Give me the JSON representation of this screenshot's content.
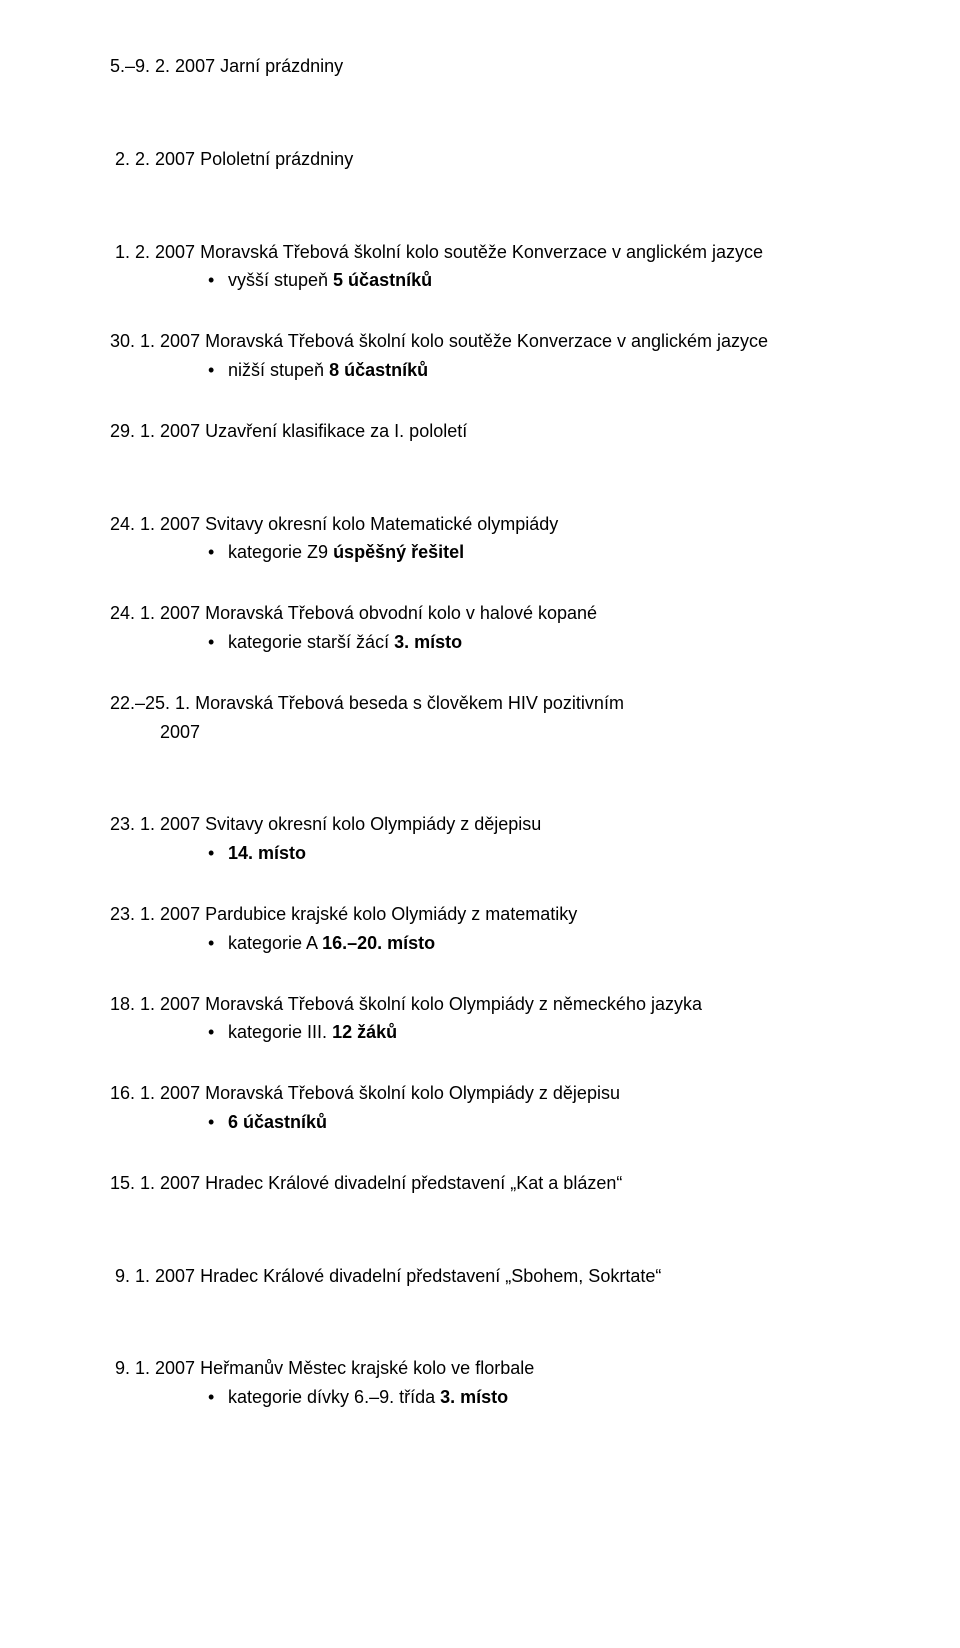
{
  "entries": [
    {
      "date": "5.–9. 2. 2007",
      "title": "Jarní prázdniny",
      "bullets": [],
      "gap_after": "large"
    },
    {
      "date": " 2. 2. 2007",
      "title": "Pololetní prázdniny",
      "bullets": [],
      "gap_after": "large"
    },
    {
      "date": " 1. 2. 2007",
      "title": "Moravská Třebová školní kolo soutěže Konverzace v anglickém jazyce",
      "bullets": [
        {
          "plain": "vyšší stupeň ",
          "bold": "5 účastníků"
        }
      ],
      "gap_after": "small"
    },
    {
      "date": "30. 1. 2007",
      "title": "Moravská Třebová školní kolo soutěže Konverzace v anglickém jazyce",
      "bullets": [
        {
          "plain": "nižší stupeň ",
          "bold": "8 účastníků"
        }
      ],
      "gap_after": "small"
    },
    {
      "date": "29. 1. 2007",
      "title": "Uzavření klasifikace za I. pololetí",
      "bullets": [],
      "gap_after": "large"
    },
    {
      "date": "24. 1. 2007",
      "title": "Svitavy okresní kolo Matematické olympiády",
      "bullets": [
        {
          "plain": "kategorie Z9 ",
          "bold": "úspěšný řešitel"
        }
      ],
      "gap_after": "small"
    },
    {
      "date": "24. 1. 2007",
      "title": "Moravská Třebová obvodní kolo v halové kopané",
      "bullets": [
        {
          "plain": "kategorie starší žácí ",
          "bold": "3. místo"
        }
      ],
      "gap_after": "small"
    },
    {
      "date": "22.–25. 1.",
      "date_line2": "2007",
      "title": "Moravská Třebová beseda s člověkem HIV pozitivním",
      "bullets": [],
      "gap_after": "large"
    },
    {
      "date": "23. 1. 2007",
      "title": "Svitavy okresní kolo Olympiády z dějepisu",
      "bullets": [
        {
          "plain": "",
          "bold": "14. místo"
        }
      ],
      "gap_after": "small"
    },
    {
      "date": "23. 1. 2007",
      "title": "Pardubice krajské kolo Olymiády z matematiky",
      "bullets": [
        {
          "plain": "kategorie A ",
          "bold": "16.–20. místo"
        }
      ],
      "gap_after": "small"
    },
    {
      "date": "18. 1. 2007",
      "title": "Moravská Třebová školní kolo Olympiády z německého jazyka",
      "bullets": [
        {
          "plain": "kategorie III. ",
          "bold": "12 žáků"
        }
      ],
      "gap_after": "small"
    },
    {
      "date": "16. 1. 2007",
      "title": "Moravská Třebová školní kolo Olympiády z dějepisu",
      "bullets": [
        {
          "plain": "",
          "bold": "6 účastníků"
        }
      ],
      "gap_after": "small"
    },
    {
      "date": "15. 1. 2007",
      "title": "Hradec Králové divadelní představení „Kat a blázen“",
      "bullets": [],
      "gap_after": "large"
    },
    {
      "date": " 9. 1. 2007",
      "title": "Hradec Králové divadelní představení „Sbohem, Sokrtate“",
      "bullets": [],
      "gap_after": "large"
    },
    {
      "date": " 9. 1. 2007",
      "title": "Heřmanův Městec krajské kolo ve florbale",
      "bullets": [
        {
          "plain": "kategorie dívky 6.–9. třída ",
          "bold": "3. místo"
        }
      ],
      "gap_after": "none"
    }
  ],
  "colors": {
    "text": "#000000",
    "background": "#ffffff"
  }
}
